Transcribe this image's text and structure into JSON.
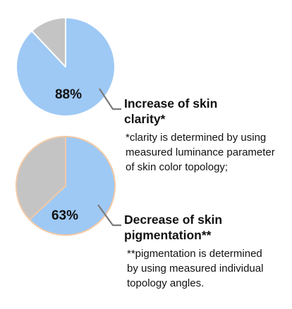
{
  "chart_data": [
    {
      "type": "pie",
      "label": "88%",
      "heading": [
        "Increase of skin",
        "clarity*"
      ],
      "note": [
        "*clarity is determined by using",
        "measured luminance parameter",
        "of skin color topology;"
      ],
      "slices": [
        {
          "value": 88,
          "color": "#9ec9f5"
        },
        {
          "value": 12,
          "color": "#c4c4c4"
        }
      ],
      "stroke": "#ffffff"
    },
    {
      "type": "pie",
      "label": "63%",
      "heading": [
        "Decrease of skin",
        "pigmentation**"
      ],
      "note": [
        "**pigmentation is determined",
        "by using measured individual",
        "topology angles."
      ],
      "slices": [
        {
          "value": 63,
          "color": "#9ec9f5"
        },
        {
          "value": 37,
          "color": "#c4c4c4"
        }
      ],
      "stroke": "#f2c9a6"
    }
  ]
}
